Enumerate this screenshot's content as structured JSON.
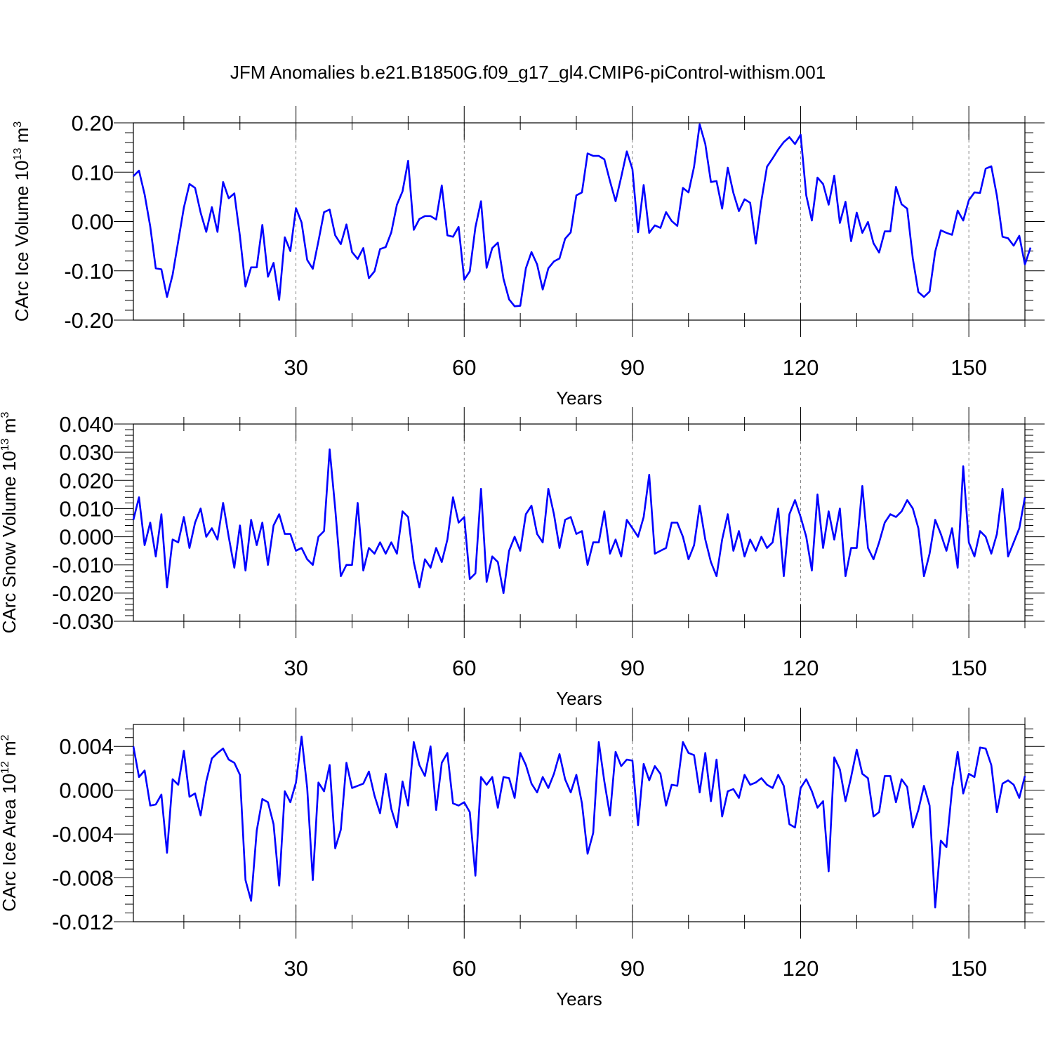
{
  "title": "JFM Anomalies b.e21.B1850G.f09_g17_gl4.CMIP6-piControl-withism.001",
  "colors": {
    "line": "#0000ff",
    "axis": "#000000",
    "grid": "#000000"
  },
  "chart_data": [
    {
      "type": "line",
      "title": "",
      "xlabel": "Years",
      "ylabel": {
        "text": "CArc Ice Volume 10",
        "sup": "13",
        "unit": " m",
        "unit_sup": "3"
      },
      "xlim": [
        1,
        160
      ],
      "ylim": [
        -0.2,
        0.2
      ],
      "xticks": [
        30,
        60,
        90,
        120,
        150
      ],
      "xtick_labels": [
        "30",
        "60",
        "90",
        "120",
        "150"
      ],
      "yticks": [
        -0.2,
        -0.1,
        0.0,
        0.1,
        0.2
      ],
      "ytick_labels": [
        "-0.20",
        "-0.10",
        "0.00",
        "0.10",
        "0.20"
      ],
      "grid": "vertical dashed at major x ticks",
      "series": [
        {
          "values": [
            0.092,
            0.103,
            0.055,
            -0.01,
            -0.095,
            -0.097,
            -0.153,
            -0.108,
            -0.04,
            0.028,
            0.076,
            0.068,
            0.018,
            -0.021,
            0.029,
            -0.021,
            0.08,
            0.047,
            0.057,
            -0.03,
            -0.132,
            -0.093,
            -0.093,
            -0.007,
            -0.112,
            -0.084,
            -0.159,
            -0.032,
            -0.06,
            0.027,
            -0.002,
            -0.078,
            -0.096,
            -0.04,
            0.019,
            0.024,
            -0.028,
            -0.046,
            -0.006,
            -0.062,
            -0.076,
            -0.054,
            -0.115,
            -0.101,
            -0.056,
            -0.052,
            -0.022,
            0.034,
            0.061,
            0.123,
            -0.017,
            0.005,
            0.011,
            0.011,
            0.004,
            0.073,
            -0.028,
            -0.031,
            -0.011,
            -0.118,
            -0.101,
            -0.012,
            0.041,
            -0.094,
            -0.054,
            -0.043,
            -0.116,
            -0.158,
            -0.172,
            -0.171,
            -0.095,
            -0.062,
            -0.087,
            -0.138,
            -0.095,
            -0.081,
            -0.075,
            -0.035,
            -0.022,
            0.053,
            0.059,
            0.138,
            0.133,
            0.133,
            0.126,
            0.082,
            0.041,
            0.09,
            0.142,
            0.106,
            -0.022,
            0.074,
            -0.023,
            -0.008,
            -0.013,
            0.019,
            0.001,
            -0.009,
            0.068,
            0.059,
            0.111,
            0.197,
            0.157,
            0.08,
            0.082,
            0.026,
            0.109,
            0.058,
            0.021,
            0.045,
            0.038,
            -0.045,
            0.042,
            0.111,
            0.128,
            0.146,
            0.161,
            0.171,
            0.157,
            0.176,
            0.053,
            0.002,
            0.089,
            0.076,
            0.034,
            0.093,
            -0.003,
            0.04,
            -0.04,
            0.018,
            -0.023,
            -0.001,
            -0.044,
            -0.063,
            -0.02,
            -0.02,
            0.07,
            0.035,
            0.026,
            -0.075,
            -0.143,
            -0.153,
            -0.142,
            -0.061,
            -0.018,
            -0.023,
            -0.027,
            0.022,
            0.002,
            0.043,
            0.059,
            0.058,
            0.107,
            0.112,
            0.052,
            -0.031,
            -0.034,
            -0.049,
            -0.029,
            -0.087,
            -0.053
          ]
        }
      ]
    },
    {
      "type": "line",
      "title": "",
      "xlabel": "Years",
      "ylabel": {
        "text": "CArc Snow Volume 10",
        "sup": "13",
        "unit": " m",
        "unit_sup": "3"
      },
      "xlim": [
        1,
        160
      ],
      "ylim": [
        -0.03,
        0.04
      ],
      "xticks": [
        30,
        60,
        90,
        120,
        150
      ],
      "xtick_labels": [
        "30",
        "60",
        "90",
        "120",
        "150"
      ],
      "yticks": [
        -0.03,
        -0.02,
        -0.01,
        0.0,
        0.01,
        0.02,
        0.03,
        0.04
      ],
      "ytick_labels": [
        "-0.030",
        "-0.020",
        "-0.010",
        "0.000",
        "0.010",
        "0.020",
        "0.030",
        "0.040"
      ],
      "grid": "vertical dashed at major x ticks",
      "series": [
        {
          "values": [
            0.006,
            0.014,
            -0.003,
            0.005,
            -0.007,
            0.008,
            -0.018,
            -0.001,
            -0.002,
            0.007,
            -0.004,
            0.005,
            0.01,
            0.0,
            0.003,
            -0.001,
            0.012,
            0.0,
            -0.011,
            0.004,
            -0.012,
            0.006,
            -0.003,
            0.005,
            -0.01,
            0.004,
            0.008,
            0.001,
            0.001,
            -0.005,
            -0.004,
            -0.008,
            -0.01,
            0.0,
            0.002,
            0.031,
            0.01,
            -0.014,
            -0.01,
            -0.01,
            0.012,
            -0.012,
            -0.004,
            -0.006,
            -0.002,
            -0.006,
            -0.002,
            -0.006,
            0.009,
            0.007,
            -0.009,
            -0.018,
            -0.008,
            -0.011,
            -0.004,
            -0.009,
            -0.001,
            0.014,
            0.005,
            0.007,
            -0.015,
            -0.013,
            0.017,
            -0.016,
            -0.007,
            -0.009,
            -0.02,
            -0.005,
            0.0,
            -0.005,
            0.008,
            0.011,
            0.001,
            -0.002,
            0.017,
            0.008,
            -0.004,
            0.006,
            0.007,
            0.001,
            0.002,
            -0.01,
            -0.002,
            -0.002,
            0.009,
            -0.006,
            -0.001,
            -0.007,
            0.006,
            0.003,
            0.0,
            0.007,
            0.022,
            -0.006,
            -0.005,
            -0.004,
            0.005,
            0.005,
            0.0,
            -0.008,
            -0.003,
            0.011,
            -0.001,
            -0.009,
            -0.014,
            -0.001,
            0.008,
            -0.005,
            0.002,
            -0.007,
            -0.001,
            -0.005,
            0.0,
            -0.004,
            -0.002,
            0.01,
            -0.014,
            0.008,
            0.013,
            0.007,
            0.0,
            -0.012,
            0.015,
            -0.004,
            0.009,
            -0.001,
            0.01,
            -0.014,
            -0.004,
            -0.004,
            0.018,
            -0.004,
            -0.008,
            -0.002,
            0.005,
            0.008,
            0.007,
            0.009,
            0.013,
            0.01,
            0.003,
            -0.014,
            -0.006,
            0.006,
            0.001,
            -0.005,
            0.003,
            -0.011,
            0.025,
            -0.002,
            -0.007,
            0.002,
            0.0,
            -0.006,
            0.001,
            0.017,
            -0.007,
            -0.002,
            0.003,
            0.014
          ]
        }
      ]
    },
    {
      "type": "line",
      "title": "",
      "xlabel": "Years",
      "ylabel": {
        "text": "CArc Ice Area 10",
        "sup": "12",
        "unit": " m",
        "unit_sup": "2"
      },
      "xlim": [
        1,
        160
      ],
      "ylim": [
        -0.012,
        0.006
      ],
      "xticks": [
        30,
        60,
        90,
        120,
        150
      ],
      "xtick_labels": [
        "30",
        "60",
        "90",
        "120",
        "150"
      ],
      "yticks": [
        -0.012,
        -0.008,
        -0.004,
        0.0,
        0.004
      ],
      "ytick_labels": [
        "-0.012",
        "-0.008",
        "-0.004",
        "0.000",
        "0.004"
      ],
      "grid": "vertical dashed at major x ticks",
      "series": [
        {
          "values": [
            0.004,
            0.0012,
            0.0018,
            -0.0014,
            -0.0013,
            -0.0004,
            -0.0057,
            0.001,
            0.0005,
            0.0036,
            -0.0006,
            -0.0003,
            -0.0023,
            0.0008,
            0.0029,
            0.0034,
            0.0038,
            0.0028,
            0.0025,
            0.0014,
            -0.0082,
            -0.0101,
            -0.0037,
            -0.0008,
            -0.0011,
            -0.0031,
            -0.0087,
            -0.0001,
            -0.0011,
            0.0007,
            0.0049,
            0.0002,
            -0.0082,
            0.0007,
            -0.0001,
            0.0023,
            -0.0053,
            -0.0036,
            0.0025,
            0.0002,
            0.0004,
            0.0006,
            0.0017,
            -0.0005,
            -0.0021,
            0.0015,
            -0.0017,
            -0.0034,
            0.0008,
            -0.0014,
            0.0044,
            0.0023,
            0.0013,
            0.004,
            -0.0018,
            0.0025,
            0.0034,
            -0.0012,
            -0.0014,
            -0.0011,
            -0.002,
            -0.0078,
            0.0012,
            0.0005,
            0.0012,
            -0.0016,
            0.0012,
            0.0011,
            -0.0007,
            0.0034,
            0.0023,
            0.0006,
            -0.0002,
            0.0012,
            0.0002,
            0.0015,
            0.0033,
            0.001,
            -0.0002,
            0.0014,
            -0.0012,
            -0.0058,
            -0.0039,
            0.0044,
            0.0008,
            -0.0023,
            0.0035,
            0.0022,
            0.0028,
            0.0027,
            -0.0032,
            0.0024,
            0.0009,
            0.0022,
            0.0015,
            -0.0014,
            0.0005,
            0.0004,
            0.0044,
            0.0034,
            0.0032,
            -0.0002,
            0.0034,
            -0.001,
            0.0028,
            -0.0024,
            -0.0001,
            0.0001,
            -0.0007,
            0.0014,
            0.0005,
            0.0007,
            0.0011,
            0.0005,
            0.0002,
            0.0014,
            0.0004,
            -0.0031,
            -0.0034,
            0.0002,
            0.001,
            -0.0001,
            -0.0016,
            -0.001,
            -0.0074,
            0.003,
            0.0019,
            -0.001,
            0.0012,
            0.0037,
            0.0015,
            0.0011,
            -0.0024,
            -0.002,
            0.0013,
            0.0013,
            -0.0011,
            0.001,
            0.0003,
            -0.0034,
            -0.0018,
            0.0004,
            -0.0014,
            -0.0107,
            -0.0046,
            -0.0052,
            0.0001,
            0.0035,
            -0.0003,
            0.0015,
            0.0012,
            0.0039,
            0.0038,
            0.0023,
            -0.002,
            0.0006,
            0.0009,
            0.0005,
            -0.0007,
            0.0013
          ]
        }
      ]
    }
  ]
}
